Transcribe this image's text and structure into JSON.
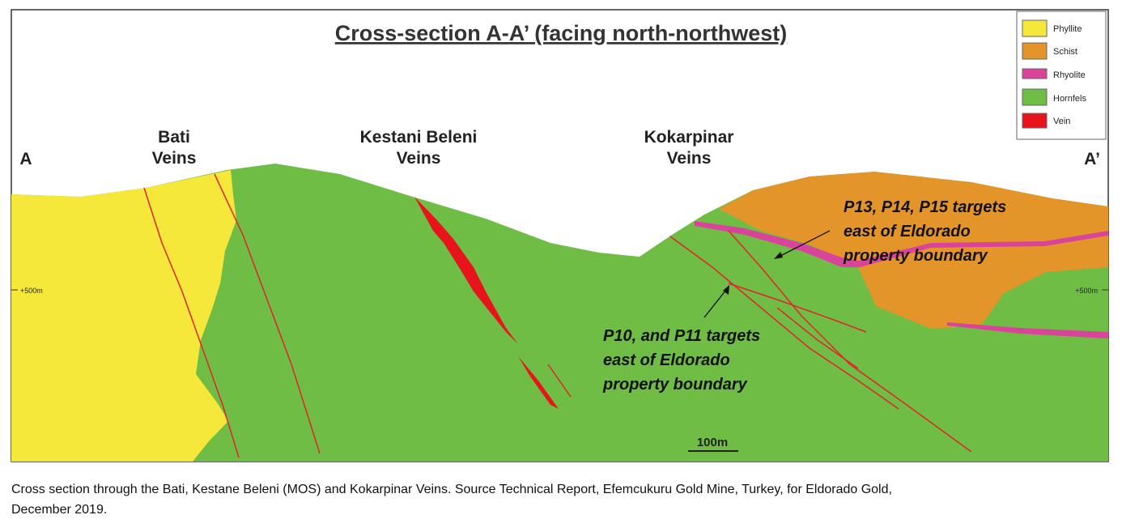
{
  "title": "Cross-section A-A’ (facing north-northwest)",
  "legend": [
    "Phyllite",
    "Schist",
    "Rhyolite",
    "Hornfels",
    "Vein"
  ],
  "section_ends": {
    "left": "A",
    "right": "A’"
  },
  "vein_labels": [
    {
      "lines": [
        "Bati",
        "Veins"
      ]
    },
    {
      "lines": [
        "Kestani Beleni",
        "Veins"
      ]
    },
    {
      "lines": [
        "Kokarpinar",
        "Veins"
      ]
    }
  ],
  "elevation_labels": {
    "left": "+500m",
    "right": "+500m"
  },
  "annotations": [
    {
      "lines": [
        "P13, P14, P15 targets",
        "east of Eldorado",
        "property boundary"
      ]
    },
    {
      "lines": [
        "P10, and P11 targets",
        "east of Eldorado",
        "property boundary"
      ]
    }
  ],
  "scale_bar": "100m",
  "caption": [
    "Cross section through the Bati, Kestane Beleni (MOS) and Kokarpinar Veins. Source Technical Report, Efemcukuru Gold Mine, Turkey, for Eldorado Gold,",
    "December 2019."
  ]
}
